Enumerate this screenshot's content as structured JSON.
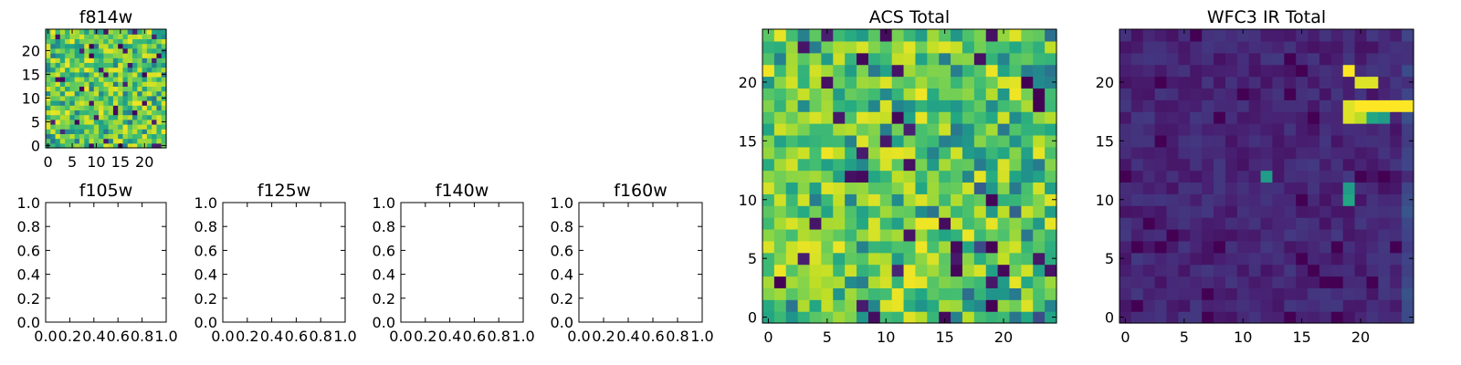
{
  "colormap": "viridis",
  "colors": {
    "background": "#ffffff",
    "axis": "#000000",
    "cmap_low": "#440154",
    "cmap_high": "#fde725"
  },
  "chart_data": [
    {
      "title": "f814w",
      "type": "heatmap",
      "grid": false,
      "shape": [
        25,
        25
      ],
      "xlim": [
        -0.5,
        24.5
      ],
      "ylim": [
        -0.5,
        24.5
      ],
      "xticks": [
        0,
        5,
        10,
        15,
        20
      ],
      "yticks": [
        0,
        5,
        10,
        15,
        20
      ],
      "seed": 11,
      "value_range": [
        0,
        1
      ],
      "note_values": "dense yellow-green field with scattered teal and dark-purple pixels"
    },
    {
      "title": "f105w",
      "type": "empty",
      "xlim": [
        0,
        1
      ],
      "ylim": [
        0,
        1
      ],
      "xticks": [
        "0.0",
        "0.2",
        "0.4",
        "0.6",
        "0.8",
        "1.0"
      ],
      "yticks": [
        "0.0",
        "0.2",
        "0.4",
        "0.6",
        "0.8",
        "1.0"
      ]
    },
    {
      "title": "f125w",
      "type": "empty",
      "xlim": [
        0,
        1
      ],
      "ylim": [
        0,
        1
      ],
      "xticks": [
        "0.0",
        "0.2",
        "0.4",
        "0.6",
        "0.8",
        "1.0"
      ],
      "yticks": [
        "0.0",
        "0.2",
        "0.4",
        "0.6",
        "0.8",
        "1.0"
      ]
    },
    {
      "title": "f140w",
      "type": "empty",
      "xlim": [
        0,
        1
      ],
      "ylim": [
        0,
        1
      ],
      "xticks": [
        "0.0",
        "0.2",
        "0.4",
        "0.6",
        "0.8",
        "1.0"
      ],
      "yticks": [
        "0.0",
        "0.2",
        "0.4",
        "0.6",
        "0.8",
        "1.0"
      ]
    },
    {
      "title": "f160w",
      "type": "empty",
      "xlim": [
        0,
        1
      ],
      "ylim": [
        0,
        1
      ],
      "xticks": [
        "0.0",
        "0.2",
        "0.4",
        "0.6",
        "0.8",
        "1.0"
      ],
      "yticks": [
        "0.0",
        "0.2",
        "0.4",
        "0.6",
        "0.8",
        "1.0"
      ]
    },
    {
      "title": "ACS Total",
      "type": "heatmap",
      "grid": false,
      "shape": [
        25,
        25
      ],
      "xlim": [
        -0.5,
        24.5
      ],
      "ylim": [
        -0.5,
        24.5
      ],
      "xticks": [
        0,
        5,
        10,
        15,
        20
      ],
      "yticks": [
        0,
        5,
        10,
        15,
        20
      ],
      "seed": 11,
      "value_range": [
        0,
        1
      ]
    },
    {
      "title": "WFC3 IR Total",
      "type": "heatmap",
      "grid": false,
      "shape": [
        25,
        25
      ],
      "xlim": [
        -0.5,
        24.5
      ],
      "ylim": [
        -0.5,
        24.5
      ],
      "xticks": [
        0,
        5,
        10,
        15,
        20
      ],
      "yticks": [
        0,
        5,
        10,
        15,
        20
      ],
      "seed": 29,
      "value_range": [
        0,
        1
      ],
      "hot_pixels": [
        {
          "x": 19,
          "y": 21,
          "v": 1.0
        },
        {
          "x": 20,
          "y": 20,
          "v": 0.95
        },
        {
          "x": 21,
          "y": 20,
          "v": 0.95
        },
        {
          "x": 19,
          "y": 18,
          "v": 0.95
        },
        {
          "x": 20,
          "y": 18,
          "v": 1.0
        },
        {
          "x": 21,
          "y": 18,
          "v": 1.0
        },
        {
          "x": 22,
          "y": 18,
          "v": 1.0
        },
        {
          "x": 23,
          "y": 18,
          "v": 1.0
        },
        {
          "x": 24,
          "y": 18,
          "v": 1.0
        },
        {
          "x": 19,
          "y": 17,
          "v": 0.95
        },
        {
          "x": 20,
          "y": 17,
          "v": 0.9
        },
        {
          "x": 21,
          "y": 17,
          "v": 0.6
        },
        {
          "x": 22,
          "y": 17,
          "v": 0.55
        },
        {
          "x": 12,
          "y": 12,
          "v": 0.55
        },
        {
          "x": 19,
          "y": 11,
          "v": 0.55
        },
        {
          "x": 19,
          "y": 10,
          "v": 0.6
        }
      ]
    }
  ]
}
